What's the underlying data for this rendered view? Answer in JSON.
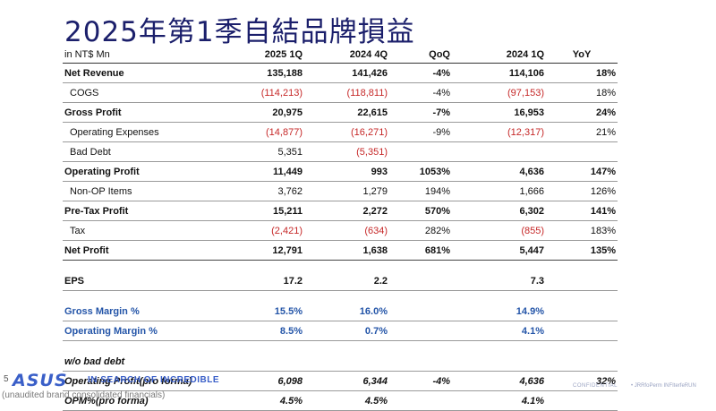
{
  "title": "2025年第1季自結品牌損益",
  "table": {
    "headers": [
      "in NT$ Mn",
      "2025 1Q",
      "2024 4Q",
      "QoQ",
      "2024 1Q",
      "YoY"
    ],
    "rows": [
      {
        "label": "Net Revenue",
        "v1": "135,188",
        "v2": "141,426",
        "qoq": "-4%",
        "v3": "114,106",
        "yoy": "18%"
      },
      {
        "label": "COGS",
        "v1": "(114,213)",
        "v2": "(118,811)",
        "qoq": "-4%",
        "v3": "(97,153)",
        "yoy": "18%"
      },
      {
        "label": "Gross Profit",
        "v1": "20,975",
        "v2": "22,615",
        "qoq": "-7%",
        "v3": "16,953",
        "yoy": "24%"
      },
      {
        "label": "Operating Expenses",
        "v1": "(14,877)",
        "v2": "(16,271)",
        "qoq": "-9%",
        "v3": "(12,317)",
        "yoy": "21%"
      },
      {
        "label": "Bad Debt",
        "v1": "5,351",
        "v2": "(5,351)",
        "qoq": "",
        "v3": "",
        "yoy": ""
      },
      {
        "label": "Operating Profit",
        "v1": "11,449",
        "v2": "993",
        "qoq": "1053%",
        "v3": "4,636",
        "yoy": "147%"
      },
      {
        "label": "Non-OP Items",
        "v1": "3,762",
        "v2": "1,279",
        "qoq": "194%",
        "v3": "1,666",
        "yoy": "126%"
      },
      {
        "label": "Pre-Tax Profit",
        "v1": "15,211",
        "v2": "2,272",
        "qoq": "570%",
        "v3": "6,302",
        "yoy": "141%"
      },
      {
        "label": "Tax",
        "v1": "(2,421)",
        "v2": "(634)",
        "qoq": "282%",
        "v3": "(855)",
        "yoy": "183%"
      },
      {
        "label": "Net Profit",
        "v1": "12,791",
        "v2": "1,638",
        "qoq": "681%",
        "v3": "5,447",
        "yoy": "135%"
      },
      {
        "label": "EPS",
        "v1": "17.2",
        "v2": "2.2",
        "qoq": "",
        "v3": "7.3",
        "yoy": ""
      },
      {
        "label": "Gross Margin %",
        "v1": "15.5%",
        "v2": "16.0%",
        "qoq": "",
        "v3": "14.9%",
        "yoy": ""
      },
      {
        "label": "Operating Margin %",
        "v1": "8.5%",
        "v2": "0.7%",
        "qoq": "",
        "v3": "4.1%",
        "yoy": ""
      },
      {
        "label": "w/o bad debt",
        "v1": "",
        "v2": "",
        "qoq": "",
        "v3": "",
        "yoy": ""
      },
      {
        "label": "Operating Profit(pro forma)",
        "v1": "6,098",
        "v2": "6,344",
        "qoq": "-4%",
        "v3": "4,636",
        "yoy": "32%"
      },
      {
        "label": "OPM%(pro forma)",
        "v1": "4.5%",
        "v2": "4.5%",
        "qoq": "",
        "v3": "4.1%",
        "yoy": ""
      }
    ]
  },
  "footer": {
    "page_number": "5",
    "logo": "ASUS",
    "slogan": "IN SEARCH OF INCREDIBLE",
    "footnote": "(unaudited brand consolidated financials)",
    "confidential": "CONFIDENTIAL",
    "confidential_2": "• JRRfoPerm INFIterfeRUN"
  },
  "colors": {
    "title": "#1b1f6b",
    "negative": "#c62828",
    "margin_rows": "#2455a8",
    "brand": "#3a5fc8"
  }
}
